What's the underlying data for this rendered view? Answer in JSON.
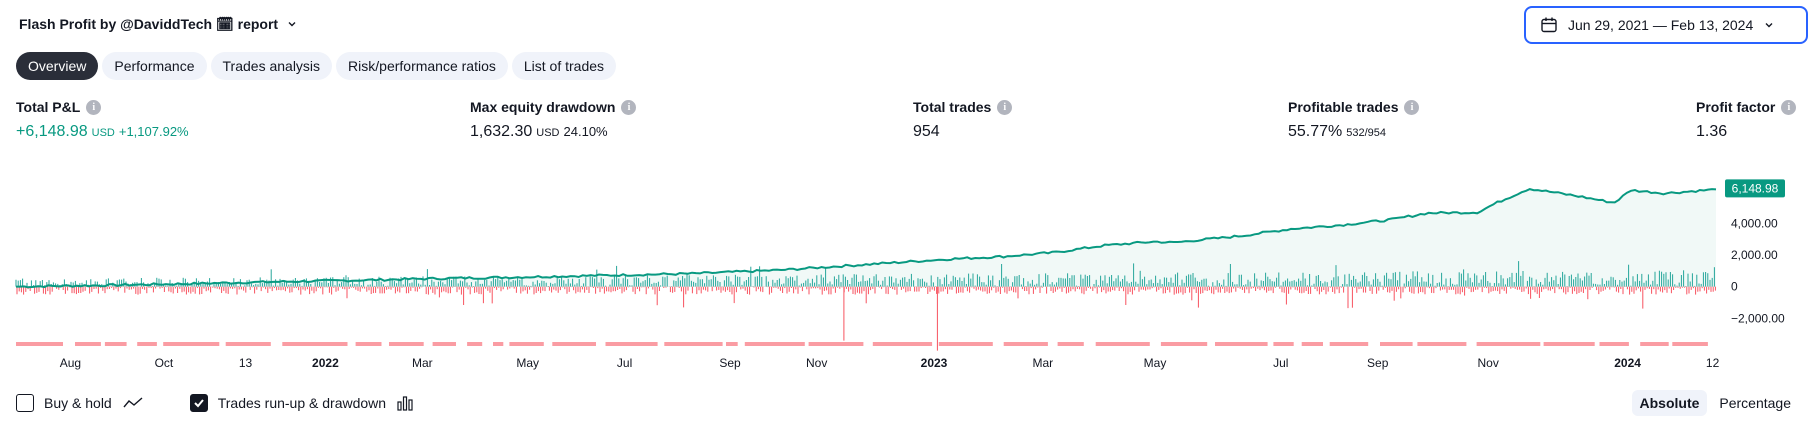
{
  "header": {
    "title": "Flash Profit by @DaviddTech 🗓 report",
    "icon_color": "#e040fb"
  },
  "date_range": {
    "label": "Jun 29, 2021 — Feb 13, 2024"
  },
  "tabs": [
    {
      "label": "Overview",
      "active": true
    },
    {
      "label": "Performance",
      "active": false
    },
    {
      "label": "Trades analysis",
      "active": false
    },
    {
      "label": "Risk/performance ratios",
      "active": false
    },
    {
      "label": "List of trades",
      "active": false
    }
  ],
  "metrics": {
    "total_pnl": {
      "label": "Total P&L",
      "value": "+6,148.98",
      "unit": "USD",
      "pct": "+1,107.92%"
    },
    "max_drawdown": {
      "label": "Max equity drawdown",
      "value": "1,632.30",
      "unit": "USD",
      "pct": "24.10%"
    },
    "total_trades": {
      "label": "Total trades",
      "value": "954"
    },
    "profitable_trades": {
      "label": "Profitable trades",
      "value": "55.77%",
      "ratio": "532/954"
    },
    "profit_factor": {
      "label": "Profit factor",
      "value": "1.36"
    }
  },
  "colors": {
    "equity": "#089981",
    "equity_fill": "#e8f5f2",
    "runup": "#26a69a",
    "drawdown": "#f7525f",
    "drawdown_bar": "#fa9ca3",
    "badge": "#089981"
  },
  "chart_data": {
    "type": "line",
    "series": [
      {
        "points": [
          [
            0,
            0
          ],
          [
            0.05,
            80
          ],
          [
            0.1,
            180
          ],
          [
            0.15,
            300
          ],
          [
            0.2,
            400
          ],
          [
            0.25,
            520
          ],
          [
            0.3,
            610
          ],
          [
            0.35,
            720
          ],
          [
            0.4,
            830
          ],
          [
            0.45,
            1050
          ],
          [
            0.5,
            1400
          ],
          [
            0.55,
            1750
          ],
          [
            0.58,
            1900
          ],
          [
            0.61,
            2150
          ],
          [
            0.64,
            2600
          ],
          [
            0.67,
            2850
          ],
          [
            0.68,
            2780
          ],
          [
            0.72,
            3200
          ],
          [
            0.75,
            3650
          ],
          [
            0.78,
            3900
          ],
          [
            0.81,
            4250
          ],
          [
            0.83,
            4650
          ],
          [
            0.86,
            4700
          ],
          [
            0.87,
            5250
          ],
          [
            0.89,
            6200
          ],
          [
            0.92,
            5700
          ],
          [
            0.94,
            5300
          ],
          [
            0.95,
            6100
          ],
          [
            0.97,
            5900
          ],
          [
            1.0,
            6148.98
          ]
        ]
      }
    ],
    "y_ticks": [
      "4,000.00",
      "2,000.00",
      "0",
      "−2,000.00"
    ],
    "y_tick_values": [
      4000,
      2000,
      0,
      -2000
    ],
    "ylim": [
      -3500,
      7500
    ],
    "last_value_label": "6,148.98",
    "x_ticks": [
      {
        "label": "Aug",
        "bold": false
      },
      {
        "label": "Oct",
        "bold": false
      },
      {
        "label": "13",
        "bold": false
      },
      {
        "label": "2022",
        "bold": true
      },
      {
        "label": "Mar",
        "bold": false
      },
      {
        "label": "May",
        "bold": false
      },
      {
        "label": "Jul",
        "bold": false
      },
      {
        "label": "Sep",
        "bold": false
      },
      {
        "label": "Nov",
        "bold": false
      },
      {
        "label": "2023",
        "bold": true
      },
      {
        "label": "Mar",
        "bold": false
      },
      {
        "label": "May",
        "bold": false
      },
      {
        "label": "Jul",
        "bold": false
      },
      {
        "label": "Sep",
        "bold": false
      },
      {
        "label": "Nov",
        "bold": false
      },
      {
        "label": "2024",
        "bold": true
      },
      {
        "label": "12",
        "bold": false
      }
    ],
    "grid": false
  },
  "footer": {
    "buy_hold": {
      "label": "Buy & hold",
      "checked": false
    },
    "runup": {
      "label": "Trades run-up & drawdown",
      "checked": true
    },
    "absolute": "Absolute",
    "percentage": "Percentage"
  }
}
